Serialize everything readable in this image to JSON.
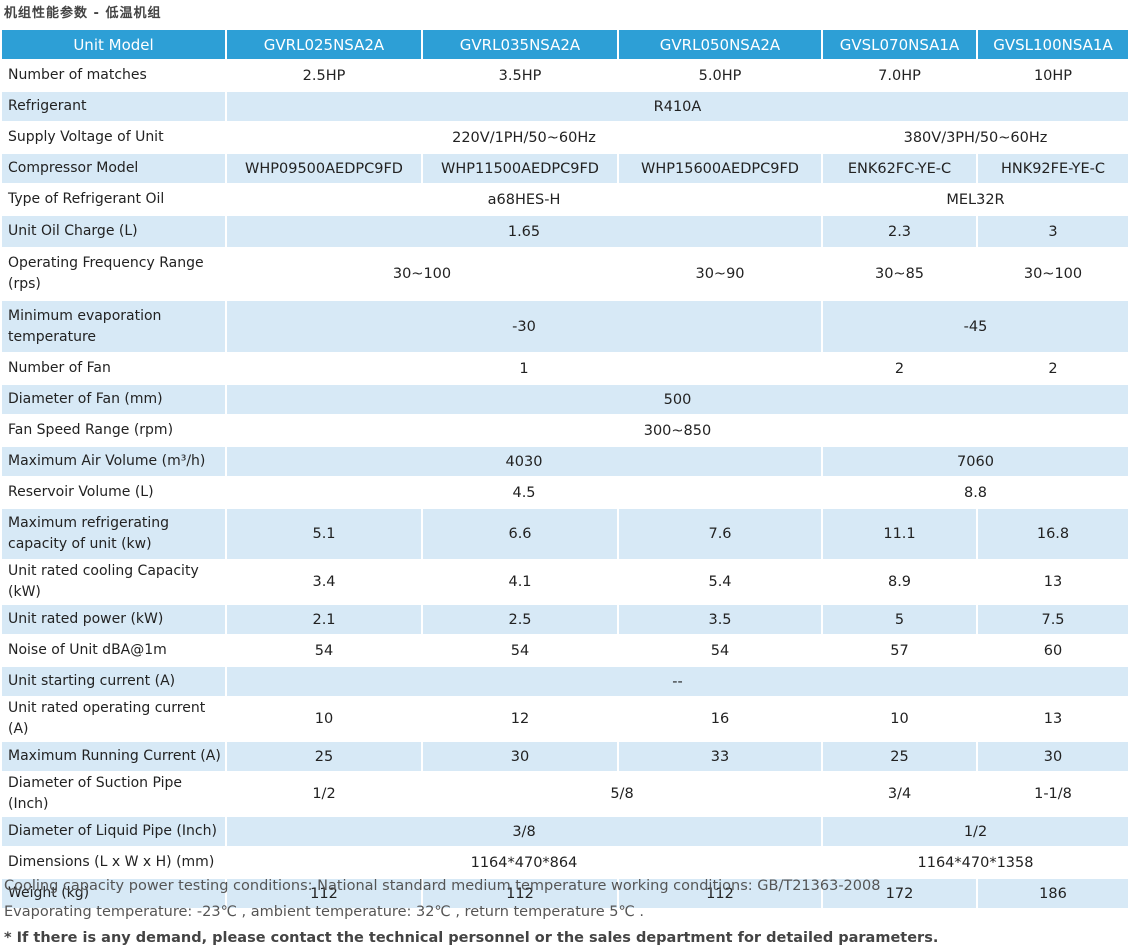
{
  "title": "机组性能参数 - 低温机组",
  "header": {
    "label": "Unit Model",
    "models": [
      "GVRL025NSA2A",
      "GVRL035NSA2A",
      "GVRL050NSA2A",
      "GVSL070NSA1A",
      "GVSL100NSA1A"
    ]
  },
  "rows": {
    "matches": {
      "label": "Number of matches",
      "v": [
        "2.5HP",
        "3.5HP",
        "5.0HP",
        "7.0HP",
        "10HP"
      ]
    },
    "refrigerant": {
      "label": "Refrigerant",
      "v": [
        "R410A"
      ]
    },
    "voltage": {
      "label": "Supply Voltage of Unit",
      "v": [
        "220V/1PH/50~60Hz",
        "380V/3PH/50~60Hz"
      ]
    },
    "compressor": {
      "label": "Compressor Model",
      "v": [
        "WHP09500AEDPC9FD",
        "WHP11500AEDPC9FD",
        "WHP15600AEDPC9FD",
        "ENK62FC-YE-C",
        "HNK92FE-YE-C"
      ]
    },
    "oil_type": {
      "label": "Type of Refrigerant Oil",
      "v": [
        "a68HES-H",
        "MEL32R"
      ]
    },
    "oil_charge": {
      "label": "Unit Oil Charge (L)",
      "v": [
        "1.65",
        "2.3",
        "3"
      ]
    },
    "freq": {
      "label": "Operating Frequency Range (rps)",
      "v": [
        "30~100",
        "30~90",
        "30~85",
        "30~100"
      ]
    },
    "min_evap": {
      "label": "Minimum evaporation temperature",
      "v": [
        "-30",
        "-45"
      ]
    },
    "fan_num": {
      "label": "Number of Fan",
      "v": [
        "1",
        "2",
        "2"
      ]
    },
    "fan_dia": {
      "label": "Diameter of Fan (mm)",
      "v": [
        "500"
      ]
    },
    "fan_speed": {
      "label": "Fan Speed Range (rpm)",
      "v": [
        "300~850"
      ]
    },
    "air_vol": {
      "label": "Maximum Air Volume (m³/h)",
      "v": [
        "4030",
        "7060"
      ]
    },
    "reservoir": {
      "label": "Reservoir Volume (L)",
      "v": [
        "4.5",
        "8.8"
      ]
    },
    "max_cap": {
      "label": "Maximum refrigerating capacity of unit (kw)",
      "v": [
        "5.1",
        "6.6",
        "7.6",
        "11.1",
        "16.8"
      ]
    },
    "rated_cap": {
      "label": "Unit rated cooling Capacity (kW)",
      "v": [
        "3.4",
        "4.1",
        "5.4",
        "8.9",
        "13"
      ]
    },
    "rated_power": {
      "label": "Unit rated power (kW)",
      "v": [
        "2.1",
        "2.5",
        "3.5",
        "5",
        "7.5"
      ]
    },
    "noise": {
      "label": "Noise of Unit dBA@1m",
      "v": [
        "54",
        "54",
        "54",
        "57",
        "60"
      ]
    },
    "start_current": {
      "label": "Unit starting current (A)",
      "v": [
        "--"
      ]
    },
    "op_current": {
      "label": "Unit rated operating current (A)",
      "v": [
        "10",
        "12",
        "16",
        "10",
        "13"
      ]
    },
    "max_current": {
      "label": "Maximum Running Current (A)",
      "v": [
        "25",
        "30",
        "33",
        "25",
        "30"
      ]
    },
    "suction": {
      "label": "Diameter of Suction Pipe (Inch)",
      "v": [
        "1/2",
        "5/8",
        "3/4",
        "1-1/8"
      ]
    },
    "liquid": {
      "label": "Diameter of Liquid Pipe (Inch)",
      "v": [
        "3/8",
        "1/2"
      ]
    },
    "dims": {
      "label": "Dimensions (L x W x H) (mm)",
      "v": [
        "1164*470*864",
        "1164*470*1358"
      ]
    },
    "weight": {
      "label": "Weight (kg)",
      "v": [
        "112",
        "112",
        "112",
        "172",
        "186"
      ]
    }
  },
  "notes": [
    "Cooling capacity power testing conditions: National standard medium temperature working conditions: GB/T21363-2008",
    "Evaporating temperature: -23℃ , ambient temperature: 32℃ , return temperature 5℃ .",
    "* If there is any demand, please contact the technical personnel or the sales department for detailed parameters."
  ],
  "colors": {
    "header_bg": "#2d9fd6",
    "stripe_bg": "#d7e9f6"
  }
}
